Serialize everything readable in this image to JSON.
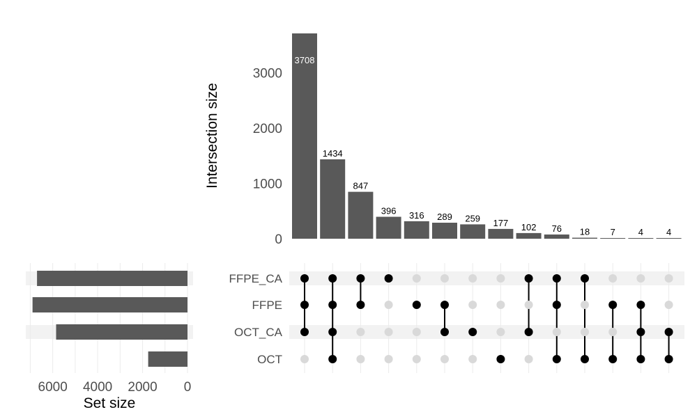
{
  "chart_data": {
    "type": "upset",
    "sets": [
      "FFPE_CA",
      "FFPE",
      "OCT_CA",
      "OCT"
    ],
    "set_sizes": [
      6700,
      6900,
      5850,
      1750
    ],
    "set_size_axis": {
      "title": "Set size",
      "ticks": [
        6000,
        4000,
        2000,
        0
      ],
      "tick_labels": [
        "6000",
        "4000",
        "2000",
        "0"
      ],
      "xlim": [
        0,
        7200
      ]
    },
    "intersection_axis": {
      "title": "Intersection size",
      "ticks": [
        0,
        1000,
        2000,
        3000
      ],
      "tick_labels": [
        "0",
        "1000",
        "2000",
        "3000"
      ],
      "ylim": [
        0,
        3708
      ]
    },
    "intersections": [
      {
        "value": 3708,
        "label": "3708",
        "members": [
          "FFPE_CA",
          "FFPE",
          "OCT_CA"
        ]
      },
      {
        "value": 1434,
        "label": "1434",
        "members": [
          "FFPE_CA",
          "FFPE",
          "OCT_CA",
          "OCT"
        ]
      },
      {
        "value": 847,
        "label": "847",
        "members": [
          "FFPE_CA",
          "FFPE"
        ]
      },
      {
        "value": 396,
        "label": "396",
        "members": [
          "FFPE_CA"
        ]
      },
      {
        "value": 316,
        "label": "316",
        "members": [
          "FFPE"
        ]
      },
      {
        "value": 289,
        "label": "289",
        "members": [
          "FFPE",
          "OCT_CA"
        ]
      },
      {
        "value": 259,
        "label": "259",
        "members": [
          "OCT_CA"
        ]
      },
      {
        "value": 177,
        "label": "177",
        "members": [
          "OCT"
        ]
      },
      {
        "value": 102,
        "label": "102",
        "members": [
          "FFPE_CA",
          "OCT_CA"
        ]
      },
      {
        "value": 76,
        "label": "76",
        "members": [
          "FFPE_CA",
          "FFPE",
          "OCT"
        ]
      },
      {
        "value": 18,
        "label": "18",
        "members": [
          "FFPE_CA",
          "OCT"
        ]
      },
      {
        "value": 7,
        "label": "7",
        "members": [
          "FFPE",
          "OCT"
        ]
      },
      {
        "value": 4,
        "label": "4",
        "members": [
          "FFPE",
          "OCT_CA",
          "OCT"
        ]
      },
      {
        "value": 4,
        "label": "4",
        "members": [
          "OCT_CA",
          "OCT"
        ]
      }
    ],
    "colors": {
      "bar": "#595959",
      "dot_on": "#000000",
      "dot_off": "#d9d9d9",
      "stripe": "#f2f2f2",
      "grid": "#ebebeb"
    }
  }
}
